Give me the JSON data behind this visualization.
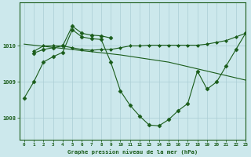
{
  "title": "Graphe pression niveau de la mer (hPa)",
  "bg_color": "#cce8ec",
  "line_color": "#1a5c1a",
  "grid_color": "#aacdd4",
  "xlim": [
    -0.5,
    23
  ],
  "ylim": [
    1007.4,
    1011.2
  ],
  "yticks": [
    1008,
    1009,
    1010
  ],
  "xticks": [
    0,
    1,
    2,
    3,
    4,
    5,
    6,
    7,
    8,
    9,
    10,
    11,
    12,
    13,
    14,
    15,
    16,
    17,
    18,
    19,
    20,
    21,
    22,
    23
  ],
  "series": [
    {
      "x": [
        1,
        2,
        3,
        4,
        5,
        6,
        7,
        8,
        9
      ],
      "y": [
        1009.8,
        1009.9,
        1009.95,
        1010.0,
        1010.55,
        1010.35,
        1010.3,
        1010.28,
        1010.22
      ],
      "marker": "D",
      "ms": 2.5
    },
    {
      "x": [
        1,
        2,
        3,
        4,
        5,
        6,
        7,
        8,
        9,
        10,
        11,
        12,
        13,
        14,
        15,
        16,
        17,
        18,
        19,
        20,
        21,
        22,
        23
      ],
      "y": [
        1009.85,
        1010.0,
        1010.0,
        1010.0,
        1009.95,
        1009.9,
        1009.88,
        1009.9,
        1009.9,
        1009.95,
        1010.0,
        1010.0,
        1010.02,
        1010.02,
        1010.02,
        1010.02,
        1010.02,
        1010.02,
        1010.05,
        1010.1,
        1010.15,
        1010.25,
        1010.35
      ],
      "marker": "D",
      "ms": 2.0
    },
    {
      "x": [
        0,
        1,
        2,
        3,
        4,
        5,
        6,
        7,
        8,
        9,
        10,
        11,
        12,
        13,
        14,
        15,
        16,
        17,
        18,
        19,
        20,
        21,
        22,
        23
      ],
      "y": [
        1008.55,
        1009.0,
        1009.55,
        1009.7,
        1009.82,
        1010.45,
        1010.25,
        1010.2,
        1010.18,
        1009.55,
        1008.75,
        1008.35,
        1008.05,
        1007.8,
        1007.78,
        1007.95,
        1008.2,
        1008.4,
        1009.3,
        1008.8,
        1009.0,
        1009.45,
        1009.9,
        1010.35
      ],
      "marker": "D",
      "ms": 2.5
    },
    {
      "x": [
        0,
        5,
        10,
        15,
        23
      ],
      "y": [
        1010.05,
        1009.9,
        1009.75,
        1009.55,
        1009.05
      ],
      "marker": null,
      "ms": 0
    }
  ]
}
